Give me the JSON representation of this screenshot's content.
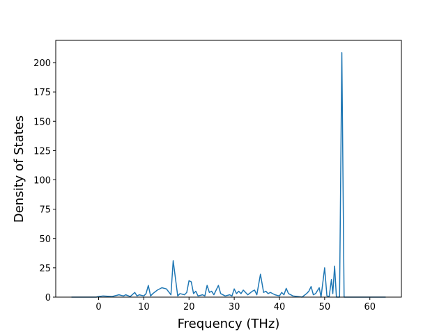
{
  "chart_data": {
    "type": "line",
    "xlabel": "Frequency (THz)",
    "ylabel": "Density of States",
    "x": [
      -6,
      -0.5,
      0,
      1,
      3,
      4.5,
      5.5,
      6,
      7,
      8,
      8.5,
      9,
      10,
      10.5,
      11,
      11.5,
      12,
      13,
      14,
      15,
      16,
      16.5,
      17.5,
      18,
      19,
      19.5,
      20,
      20.5,
      21,
      21.5,
      22,
      23,
      23.5,
      24,
      24.5,
      25,
      25.5,
      26.5,
      27,
      28,
      29,
      29.5,
      30,
      30.5,
      31,
      31.5,
      32,
      33,
      34,
      34.5,
      35,
      35.8,
      36.5,
      37,
      37.5,
      38,
      39,
      40,
      40.5,
      41,
      41.5,
      42,
      43,
      44,
      45,
      46,
      46.5,
      47,
      47.5,
      48,
      48.8,
      49.2,
      50,
      50.5,
      51,
      51.5,
      51.8,
      52.2,
      52.6,
      53.3,
      53.8,
      54.3,
      63.5
    ],
    "series": [
      {
        "color": "#1f77b4",
        "values": [
          0,
          0,
          0.5,
          1,
          0.5,
          2,
          1,
          2,
          0.5,
          4,
          1,
          2,
          1,
          3,
          10,
          1,
          3,
          6,
          8,
          7,
          2,
          31,
          1,
          3,
          2,
          4,
          14,
          13,
          3,
          5,
          1,
          2,
          1,
          10,
          4,
          5,
          2,
          10,
          3,
          1,
          2,
          1,
          7,
          3,
          5,
          3,
          6,
          2,
          5,
          6,
          2,
          19.5,
          4,
          5,
          3,
          4,
          2,
          1,
          4,
          2,
          7.5,
          3,
          1,
          0.5,
          0,
          3,
          5,
          9,
          2,
          3,
          8,
          0,
          25,
          1,
          0.5,
          15,
          3,
          26.5,
          0,
          0,
          208.5,
          0,
          0
        ]
      }
    ],
    "xlim": [
      -9.475,
      66.975
    ],
    "ylim": [
      0,
      219
    ],
    "xticks": [
      0,
      10,
      20,
      30,
      40,
      50,
      60
    ],
    "yticks": [
      0,
      25,
      50,
      75,
      100,
      125,
      150,
      175,
      200
    ]
  }
}
